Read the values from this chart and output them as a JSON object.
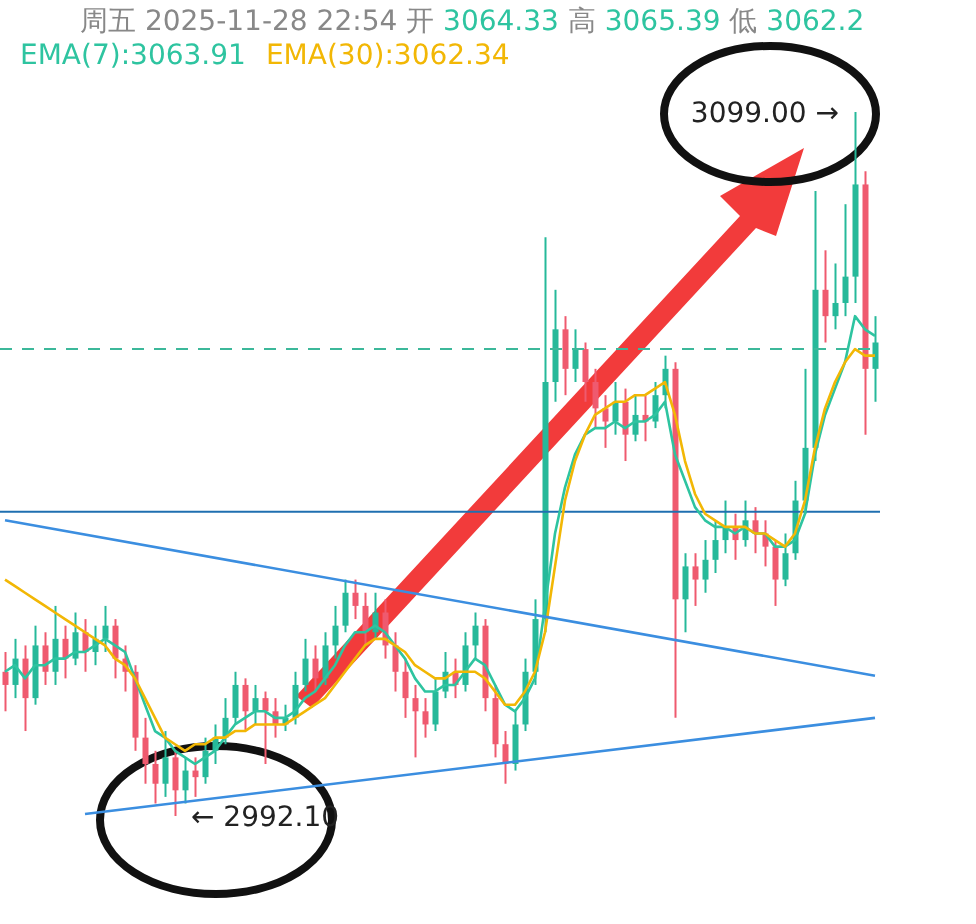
{
  "chart_data": {
    "type": "candlestick",
    "title": "周五 2025-11-28 22:54 开 3064.33 高 3065.39 低 3062.2",
    "legend": "top left",
    "tick_labels": false,
    "marker": "none",
    "categories": [
      null,
      null,
      null,
      null,
      null,
      null,
      null,
      null,
      null,
      null,
      null,
      null,
      null,
      null,
      null,
      null,
      null,
      null,
      null,
      null,
      null,
      null,
      null,
      null,
      null,
      null,
      null,
      null,
      null,
      null,
      null,
      null,
      null,
      null,
      null,
      null,
      null,
      null,
      null,
      null,
      null,
      null,
      null,
      null,
      null,
      null,
      null,
      null,
      null,
      null,
      null,
      null,
      null,
      null,
      null,
      null,
      null,
      null,
      null,
      null,
      null,
      null,
      null,
      null,
      null,
      null,
      null,
      null,
      null,
      null,
      null,
      null,
      null,
      null,
      null,
      null,
      null,
      null,
      null,
      null,
      null,
      null,
      null,
      null,
      null,
      null,
      null,
      null
    ],
    "ohlc": [
      [
        3014,
        3017,
        3008,
        3012
      ],
      [
        3012,
        3019,
        3010,
        3016
      ],
      [
        3016,
        3018,
        3005,
        3010
      ],
      [
        3010,
        3021,
        3009,
        3018
      ],
      [
        3018,
        3020,
        3012,
        3014
      ],
      [
        3014,
        3024,
        3012,
        3019
      ],
      [
        3019,
        3021,
        3013,
        3016
      ],
      [
        3016,
        3023,
        3015,
        3020
      ],
      [
        3020,
        3022,
        3014,
        3017
      ],
      [
        3017,
        3021,
        3015,
        3019
      ],
      [
        3019,
        3024,
        3017,
        3021
      ],
      [
        3021,
        3022,
        3013,
        3016
      ],
      [
        3016,
        3018,
        3011,
        3014
      ],
      [
        3014,
        3015,
        3002,
        3004
      ],
      [
        3004,
        3007,
        2997,
        3000
      ],
      [
        3000,
        3002,
        2994,
        2997
      ],
      [
        2997,
        3005,
        2995,
        3001
      ],
      [
        3001,
        3002,
        2992.1,
        2996
      ],
      [
        2996,
        3001,
        2994,
        2999
      ],
      [
        2999,
        3001,
        2995,
        2998
      ],
      [
        2998,
        3004,
        2997,
        3002
      ],
      [
        3002,
        3006,
        3000,
        3004
      ],
      [
        3004,
        3010,
        3003,
        3007
      ],
      [
        3007,
        3014,
        3006,
        3012
      ],
      [
        3012,
        3013,
        3005,
        3008
      ],
      [
        3008,
        3012,
        3006,
        3010
      ],
      [
        3010,
        3011,
        3000,
        3008
      ],
      [
        3008,
        3010,
        3004,
        3006
      ],
      [
        3006,
        3009,
        3005,
        3007
      ],
      [
        3007,
        3014,
        3006,
        3012
      ],
      [
        3012,
        3019,
        3011,
        3016
      ],
      [
        3016,
        3018,
        3011,
        3013
      ],
      [
        3013,
        3020,
        3012,
        3018
      ],
      [
        3018,
        3024,
        3016,
        3021
      ],
      [
        3021,
        3028,
        3020,
        3026
      ],
      [
        3026,
        3028,
        3022,
        3024
      ],
      [
        3024,
        3026,
        3018,
        3020
      ],
      [
        3020,
        3026,
        3019,
        3023
      ],
      [
        3023,
        3025,
        3016,
        3018
      ],
      [
        3018,
        3020,
        3011,
        3014
      ],
      [
        3014,
        3016,
        3007,
        3010
      ],
      [
        3010,
        3012,
        3001,
        3008
      ],
      [
        3008,
        3010,
        3004,
        3006
      ],
      [
        3006,
        3013,
        3005,
        3011
      ],
      [
        3011,
        3017,
        3010,
        3014
      ],
      [
        3014,
        3016,
        3010,
        3012
      ],
      [
        3012,
        3020,
        3011,
        3018
      ],
      [
        3018,
        3023,
        3016,
        3021
      ],
      [
        3021,
        3022,
        3008,
        3010
      ],
      [
        3010,
        3012,
        3001,
        3003
      ],
      [
        3003,
        3005,
        2997,
        3000
      ],
      [
        3000,
        3008,
        2999,
        3006
      ],
      [
        3006,
        3016,
        3005,
        3014
      ],
      [
        3014,
        3025,
        3012,
        3022
      ],
      [
        3022,
        3080,
        3020,
        3058
      ],
      [
        3058,
        3072,
        3055,
        3066
      ],
      [
        3066,
        3068,
        3056,
        3060
      ],
      [
        3060,
        3066,
        3058,
        3063
      ],
      [
        3063,
        3064,
        3055,
        3058
      ],
      [
        3058,
        3060,
        3051,
        3054
      ],
      [
        3054,
        3056,
        3048,
        3052
      ],
      [
        3052,
        3058,
        3050,
        3055
      ],
      [
        3055,
        3057,
        3046,
        3050
      ],
      [
        3050,
        3056,
        3049,
        3053
      ],
      [
        3053,
        3056,
        3049,
        3052
      ],
      [
        3052,
        3058,
        3051,
        3056
      ],
      [
        3056,
        3062,
        3054,
        3060
      ],
      [
        3060,
        3061,
        3007,
        3025
      ],
      [
        3025,
        3032,
        3020,
        3030
      ],
      [
        3030,
        3032,
        3024,
        3028
      ],
      [
        3028,
        3034,
        3026,
        3031
      ],
      [
        3031,
        3037,
        3029,
        3034
      ],
      [
        3034,
        3040,
        3032,
        3036
      ],
      [
        3036,
        3038,
        3031,
        3034
      ],
      [
        3034,
        3040,
        3033,
        3037
      ],
      [
        3037,
        3039,
        3032,
        3035
      ],
      [
        3035,
        3037,
        3030,
        3033
      ],
      [
        3033,
        3034,
        3024,
        3028
      ],
      [
        3028,
        3035,
        3027,
        3032
      ],
      [
        3032,
        3043,
        3031,
        3040
      ],
      [
        3040,
        3060,
        3038,
        3048
      ],
      [
        3048,
        3087,
        3046,
        3072
      ],
      [
        3072,
        3078,
        3064,
        3068
      ],
      [
        3068,
        3076,
        3066,
        3070
      ],
      [
        3070,
        3085,
        3068,
        3074
      ],
      [
        3074,
        3099,
        3070,
        3088
      ],
      [
        3088,
        3090,
        3050,
        3060
      ],
      [
        3060,
        3068,
        3055,
        3064
      ]
    ],
    "colors": [
      "#ef5a6f",
      "#26b99a",
      "#ef5a6f",
      "#26b99a",
      "#ef5a6f",
      "#26b99a",
      "#ef5a6f",
      "#26b99a",
      "#ef5a6f",
      "#26b99a",
      "#26b99a",
      "#ef5a6f",
      "#ef5a6f",
      "#ef5a6f",
      "#ef5a6f",
      "#ef5a6f",
      "#26b99a",
      "#ef5a6f",
      "#26b99a",
      "#ef5a6f",
      "#26b99a",
      "#26b99a",
      "#26b99a",
      "#26b99a",
      "#ef5a6f",
      "#26b99a",
      "#ef5a6f",
      "#ef5a6f",
      "#26b99a",
      "#26b99a",
      "#26b99a",
      "#ef5a6f",
      "#26b99a",
      "#26b99a",
      "#26b99a",
      "#ef5a6f",
      "#ef5a6f",
      "#26b99a",
      "#ef5a6f",
      "#ef5a6f",
      "#ef5a6f",
      "#ef5a6f",
      "#ef5a6f",
      "#26b99a",
      "#26b99a",
      "#ef5a6f",
      "#26b99a",
      "#26b99a",
      "#ef5a6f",
      "#ef5a6f",
      "#ef5a6f",
      "#26b99a",
      "#26b99a",
      "#26b99a",
      "#26b99a",
      "#26b99a",
      "#ef5a6f",
      "#26b99a",
      "#ef5a6f",
      "#ef5a6f",
      "#ef5a6f",
      "#26b99a",
      "#ef5a6f",
      "#26b99a",
      "#ef5a6f",
      "#26b99a",
      "#26b99a",
      "#ef5a6f",
      "#26b99a",
      "#ef5a6f",
      "#26b99a",
      "#26b99a",
      "#26b99a",
      "#ef5a6f",
      "#26b99a",
      "#ef5a6f",
      "#ef5a6f",
      "#ef5a6f",
      "#26b99a",
      "#26b99a",
      "#26b99a",
      "#26b99a",
      "#ef5a6f",
      "#26b99a",
      "#26b99a",
      "#26b99a",
      "#ef5a6f",
      "#26b99a"
    ],
    "series": [
      {
        "name": "EMA(7):3063.91",
        "type": "line",
        "color": "#2ec4a0",
        "values": [
          3014,
          3015,
          3013,
          3015,
          3015,
          3016,
          3016,
          3017,
          3017,
          3018,
          3019,
          3018,
          3017,
          3013,
          3009,
          3005,
          3004,
          3002,
          3001,
          3000,
          3001,
          3002,
          3004,
          3006,
          3007,
          3008,
          3008,
          3007,
          3007,
          3008,
          3010,
          3011,
          3013,
          3015,
          3018,
          3020,
          3020,
          3021,
          3020,
          3018,
          3016,
          3013,
          3011,
          3011,
          3012,
          3012,
          3014,
          3016,
          3015,
          3012,
          3009,
          3008,
          3010,
          3013,
          3024,
          3035,
          3042,
          3047,
          3050,
          3051,
          3051,
          3052,
          3051,
          3052,
          3052,
          3053,
          3055,
          3047,
          3043,
          3039,
          3037,
          3036,
          3036,
          3035,
          3036,
          3035,
          3035,
          3033,
          3033,
          3034,
          3038,
          3047,
          3053,
          3057,
          3061,
          3068,
          3066,
          3065
        ]
      },
      {
        "name": "EMA(30):3062.34",
        "type": "line",
        "color": "#f2b705",
        "values": [
          3028,
          3027,
          3026,
          3025,
          3024,
          3023,
          3022,
          3021,
          3020,
          3019,
          3018,
          3016,
          3015,
          3013,
          3010,
          3007,
          3004,
          3003,
          3002,
          3003,
          3003,
          3004,
          3004,
          3005,
          3005,
          3006,
          3006,
          3006,
          3006,
          3007,
          3008,
          3009,
          3010,
          3012,
          3014,
          3016,
          3018,
          3019,
          3019,
          3018,
          3017,
          3015,
          3014,
          3013,
          3013,
          3014,
          3014,
          3014,
          3013,
          3011,
          3009,
          3009,
          3011,
          3014,
          3020,
          3030,
          3040,
          3046,
          3050,
          3053,
          3054,
          3055,
          3055,
          3056,
          3056,
          3057,
          3058,
          3053,
          3046,
          3041,
          3038,
          3037,
          3036,
          3036,
          3036,
          3035,
          3035,
          3034,
          3033,
          3035,
          3040,
          3048,
          3054,
          3058,
          3061,
          3063,
          3062,
          3062
        ]
      },
      {
        "type": "line",
        "color": "#3b8ee0",
        "values": [
          3037,
          null,
          null,
          null,
          null,
          null,
          null,
          null,
          null,
          null,
          null,
          null,
          null,
          null,
          null,
          null,
          null,
          null,
          null,
          null,
          null,
          null,
          null,
          null,
          null,
          null,
          null,
          null,
          null,
          null,
          null,
          null,
          null,
          null,
          null,
          null,
          null,
          null,
          null,
          null,
          null,
          null,
          null,
          null,
          null,
          null,
          null,
          null,
          null,
          null,
          null,
          null,
          null,
          null,
          null,
          null,
          null,
          null,
          null,
          null,
          null,
          null,
          null,
          null,
          null,
          null,
          null,
          null,
          null,
          null,
          null,
          null,
          null,
          null,
          null,
          null,
          null,
          null,
          null,
          null,
          null,
          null,
          null,
          null,
          null,
          null,
          null,
          3013.4
        ]
      },
      {
        "type": "line",
        "color": "#3b8ee0",
        "values": [
          null,
          null,
          null,
          null,
          null,
          null,
          null,
          null,
          2992.4,
          null,
          null,
          null,
          null,
          null,
          null,
          null,
          null,
          null,
          null,
          null,
          null,
          null,
          null,
          null,
          null,
          null,
          null,
          null,
          null,
          null,
          null,
          null,
          null,
          null,
          null,
          null,
          null,
          null,
          null,
          null,
          null,
          null,
          null,
          null,
          null,
          null,
          null,
          null,
          null,
          null,
          null,
          null,
          null,
          null,
          null,
          null,
          null,
          null,
          null,
          null,
          null,
          null,
          null,
          null,
          null,
          null,
          null,
          null,
          null,
          null,
          null,
          null,
          null,
          null,
          null,
          null,
          null,
          null,
          null,
          null,
          null,
          null,
          null,
          null,
          null,
          null,
          null,
          3007
        ]
      }
    ],
    "ref_lines": [
      {
        "axis": "y",
        "value": 3038.3,
        "color": "#1f6fb0",
        "line_style": "solid"
      },
      {
        "axis": "y",
        "value": 3063,
        "color": "#3cb89a",
        "line_style": "dashed"
      }
    ],
    "annotations": [
      "3099.00 →",
      "← 2992.10"
    ]
  }
}
